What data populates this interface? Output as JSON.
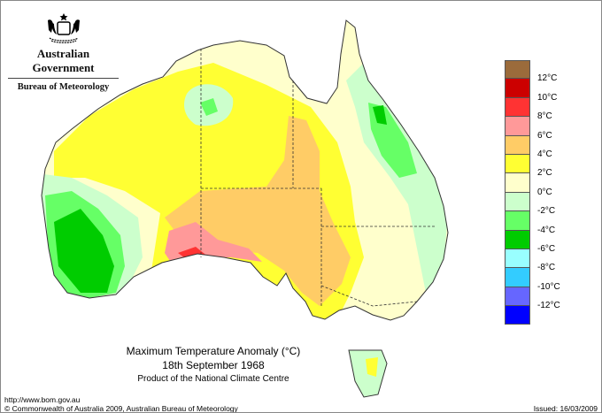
{
  "logo": {
    "line1": "Australian Government",
    "line2": "Bureau of Meteorology"
  },
  "title": {
    "line1": "Maximum Temperature Anomaly (°C)",
    "line2": "18th September 1968",
    "line3": "Product of the National Climate Centre"
  },
  "footer": {
    "url": "http://www.bom.gov.au",
    "copyright": "© Commonwealth of Australia 2009, Australian Bureau of Meteorology",
    "issued": "Issued: 16/03/2009"
  },
  "legend": {
    "colors": [
      "#9b6b3b",
      "#cc0000",
      "#ff3333",
      "#ff9999",
      "#ffcc66",
      "#ffff33",
      "#ffffcc",
      "#ccffcc",
      "#66ff66",
      "#00cc00",
      "#99ffff",
      "#33ccff",
      "#6666ff",
      "#0000ff"
    ],
    "labels": [
      "12°C",
      "10°C",
      "8°C",
      "6°C",
      "4°C",
      "2°C",
      "0°C",
      "-2°C",
      "-4°C",
      "-6°C",
      "-8°C",
      "-10°C",
      "-12°C"
    ]
  }
}
